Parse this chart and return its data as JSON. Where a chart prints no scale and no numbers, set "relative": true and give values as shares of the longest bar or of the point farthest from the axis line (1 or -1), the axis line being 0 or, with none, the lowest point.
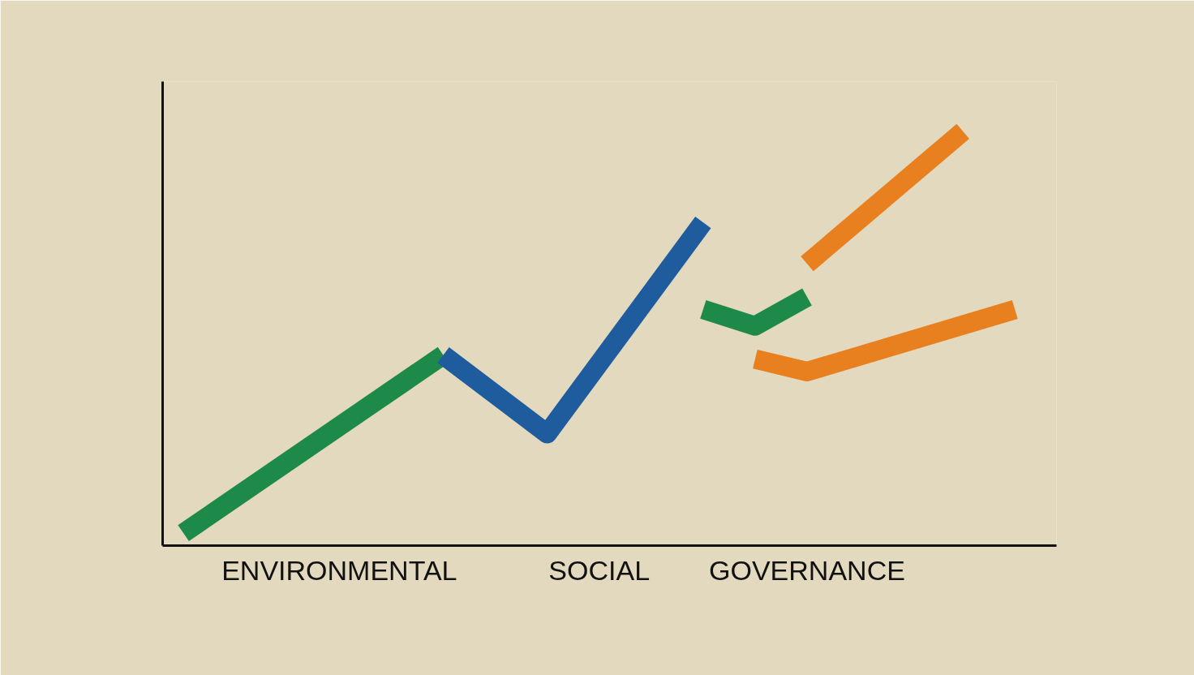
{
  "chart_data": {
    "type": "line",
    "relative": true,
    "categories": [
      null,
      null,
      null,
      "ENVIRONMENTAL",
      null,
      null,
      null,
      null,
      "SOCIAL",
      null,
      null,
      null,
      "GOVERNANCE",
      null,
      null,
      null,
      null
    ],
    "series": [
      {
        "color": "#1e8a4a",
        "values": [
          0.03,
          null,
          null,
          null,
          null,
          0.46,
          null,
          null,
          null,
          null,
          null,
          null,
          null,
          null,
          null,
          null,
          null
        ]
      },
      {
        "color": "#1f5c9e",
        "values": [
          null,
          null,
          null,
          null,
          null,
          0.46,
          null,
          0.27,
          null,
          null,
          0.78,
          null,
          null,
          null,
          null,
          null,
          null
        ]
      },
      {
        "color": "#1e8a4a",
        "values": [
          null,
          null,
          null,
          null,
          null,
          null,
          null,
          null,
          null,
          null,
          0.57,
          0.53,
          0.6,
          null,
          null,
          null,
          null
        ]
      },
      {
        "color": "#e8801f",
        "values": [
          null,
          null,
          null,
          null,
          null,
          null,
          null,
          null,
          null,
          null,
          null,
          0.45,
          0.42,
          null,
          null,
          null,
          0.57
        ]
      },
      {
        "color": "#e8801f",
        "values": [
          null,
          null,
          null,
          null,
          null,
          null,
          null,
          null,
          null,
          null,
          null,
          null,
          0.68,
          null,
          null,
          1.0,
          null
        ]
      }
    ],
    "grid": false,
    "marker": "none",
    "line_style": "solid"
  }
}
